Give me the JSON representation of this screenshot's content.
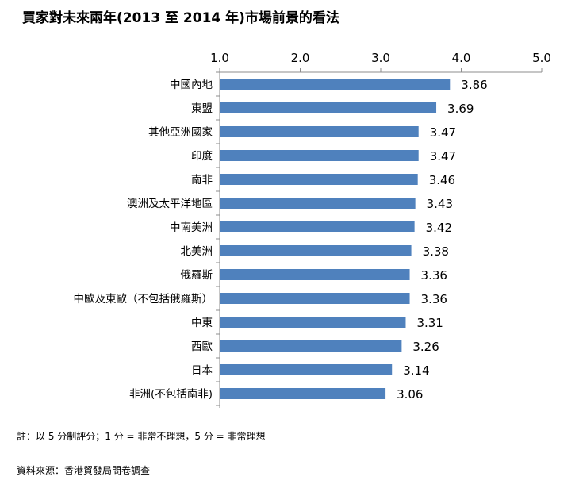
{
  "chart_data": {
    "type": "bar",
    "orientation": "horizontal",
    "title": "買家對未來兩年(2013 至 2014 年)市場前景的看法",
    "xlim": [
      1.0,
      5.0
    ],
    "ticks": [
      "1.0",
      "2.0",
      "3.0",
      "4.0",
      "5.0"
    ],
    "tick_values": [
      1,
      2,
      3,
      4,
      5
    ],
    "axis_position": "top",
    "grid": false,
    "bar_color": "#4f81bd",
    "categories": [
      "中國內地",
      "東盟",
      "其他亞洲國家",
      "印度",
      "南非",
      "澳洲及太平洋地區",
      "中南美洲",
      "北美洲",
      "俄羅斯",
      "中歐及東歐（不包括俄羅斯）",
      "中東",
      "西歐",
      "日本",
      "非洲(不包括南非)"
    ],
    "values": [
      3.86,
      3.69,
      3.47,
      3.47,
      3.46,
      3.43,
      3.42,
      3.38,
      3.36,
      3.36,
      3.31,
      3.26,
      3.14,
      3.06
    ],
    "value_labels": [
      "3.86",
      "3.69",
      "3.47",
      "3.47",
      "3.46",
      "3.43",
      "3.42",
      "3.38",
      "3.36",
      "3.36",
      "3.31",
      "3.26",
      "3.14",
      "3.06"
    ]
  },
  "notes": {
    "rating": "註：以 5 分制評分；1 分 = 非常不理想，5 分 = 非常理想",
    "source": "資料來源：香港貿發局問卷調查"
  }
}
